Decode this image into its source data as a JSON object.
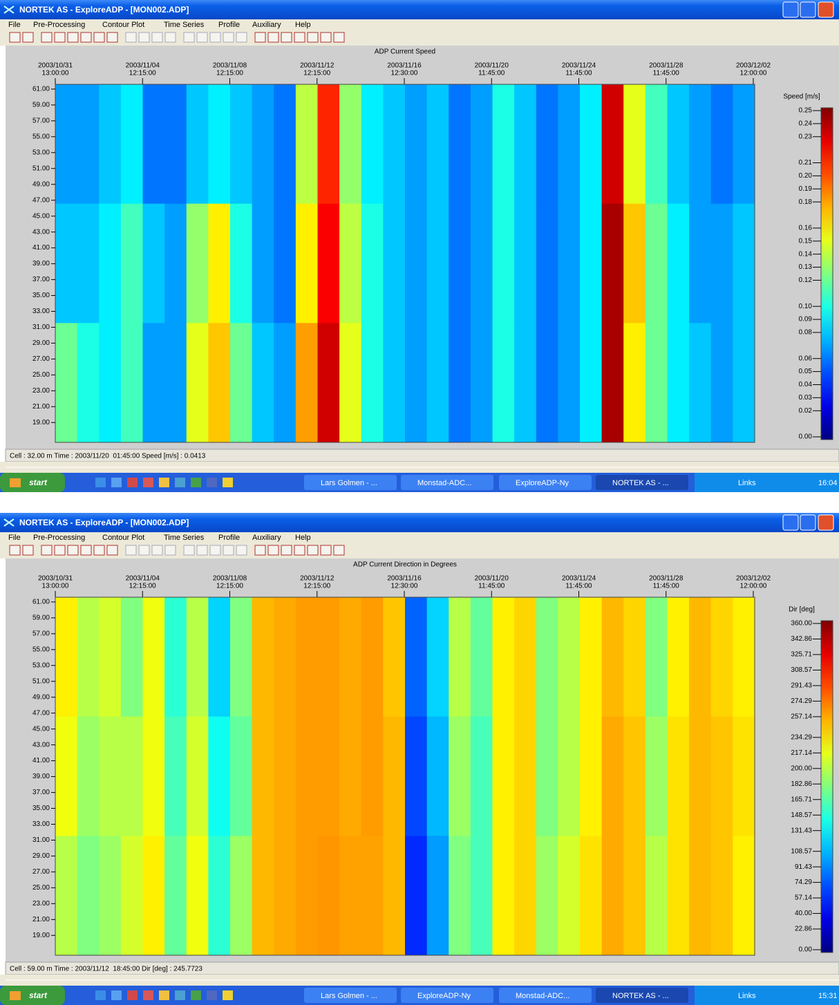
{
  "windows": [
    {
      "title": "NORTEK AS - ExploreADP - [MON002.ADP]",
      "menu": [
        "File",
        "Pre-Processing",
        "Contour Plot",
        "Time Series",
        "Profile",
        "Auxiliary",
        "Help"
      ],
      "status": "Cell : 32.00 m Time : 2003/11/20  01:45:00 Speed [m/s] : 0.0413",
      "taskbar": {
        "start": "start",
        "items": [
          "Lars Golmen - ...",
          "Monstad-ADC...",
          "ExploreADP-Ny",
          "NORTEK AS - ..."
        ],
        "links": "Links",
        "clock": "16:04"
      },
      "chart": {
        "type": "heatmap",
        "title": "ADP Current Speed",
        "colorbar_label": "Speed [m/s]",
        "xtick_labels": [
          [
            "2003/10/31",
            "13:00:00"
          ],
          [
            "2003/11/04",
            "12:15:00"
          ],
          [
            "2003/11/08",
            "12:15:00"
          ],
          [
            "2003/11/12",
            "12:15:00"
          ],
          [
            "2003/11/16",
            "12:30:00"
          ],
          [
            "2003/11/20",
            "11:45:00"
          ],
          [
            "2003/11/24",
            "11:45:00"
          ],
          [
            "2003/11/28",
            "11:45:00"
          ],
          [
            "2003/12/02",
            "12:00:00"
          ]
        ],
        "ylim": [
          16.5,
          61.6
        ],
        "yticks": [
          {
            "value": 61,
            "label": "61.00"
          },
          {
            "value": 59,
            "label": "59.00"
          },
          {
            "value": 57,
            "label": "57.00"
          },
          {
            "value": 55,
            "label": "55.00"
          },
          {
            "value": 53,
            "label": "53.00"
          },
          {
            "value": 51,
            "label": "51.00"
          },
          {
            "value": 49,
            "label": "49.00"
          },
          {
            "value": 47,
            "label": "47.00"
          },
          {
            "value": 45,
            "label": "45.00"
          },
          {
            "value": 43,
            "label": "43.00"
          },
          {
            "value": 41,
            "label": "41.00"
          },
          {
            "value": 39,
            "label": "39.00"
          },
          {
            "value": 37,
            "label": "37.00"
          },
          {
            "value": 35,
            "label": "35.00"
          },
          {
            "value": 33,
            "label": "33.00"
          },
          {
            "value": 31,
            "label": "31.00"
          },
          {
            "value": 29,
            "label": "29.00"
          },
          {
            "value": 27,
            "label": "27.00"
          },
          {
            "value": 25,
            "label": "25.00"
          },
          {
            "value": 23,
            "label": "23.00"
          },
          {
            "value": 21,
            "label": "21.00"
          },
          {
            "value": 19,
            "label": "19.00"
          }
        ],
        "zlim": [
          0,
          0.25
        ],
        "zticks": [
          {
            "value": 0.25,
            "label": "0.25"
          },
          {
            "value": 0.24,
            "label": "0.24"
          },
          {
            "value": 0.23,
            "label": "0.23"
          },
          {
            "value": 0.21,
            "label": "0.21"
          },
          {
            "value": 0.2,
            "label": "0.20"
          },
          {
            "value": 0.19,
            "label": "0.19"
          },
          {
            "value": 0.18,
            "label": "0.18"
          },
          {
            "value": 0.16,
            "label": "0.16"
          },
          {
            "value": 0.15,
            "label": "0.15"
          },
          {
            "value": 0.14,
            "label": "0.14"
          },
          {
            "value": 0.13,
            "label": "0.13"
          },
          {
            "value": 0.12,
            "label": "0.12"
          },
          {
            "value": 0.1,
            "label": "0.10"
          },
          {
            "value": 0.09,
            "label": "0.09"
          },
          {
            "value": 0.08,
            "label": "0.08"
          },
          {
            "value": 0.06,
            "label": "0.06"
          },
          {
            "value": 0.05,
            "label": "0.05"
          },
          {
            "value": 0.04,
            "label": "0.04"
          },
          {
            "value": 0.03,
            "label": "0.03"
          },
          {
            "value": 0.02,
            "label": "0.02"
          },
          {
            "value": 0,
            "label": "0.00"
          }
        ],
        "z": [
          [
            0.07,
            0.07,
            0.08,
            0.09,
            0.06,
            0.06,
            0.08,
            0.09,
            0.08,
            0.07,
            0.06,
            0.14,
            0.21,
            0.13,
            0.09,
            0.08,
            0.07,
            0.08,
            0.06,
            0.07,
            0.1,
            0.08,
            0.06,
            0.07,
            0.09,
            0.23,
            0.15,
            0.11,
            0.08,
            0.07,
            0.06,
            0.07
          ],
          [
            0.08,
            0.08,
            0.09,
            0.11,
            0.08,
            0.07,
            0.13,
            0.16,
            0.1,
            0.07,
            0.06,
            0.16,
            0.22,
            0.14,
            0.1,
            0.08,
            0.07,
            0.08,
            0.06,
            0.07,
            0.1,
            0.08,
            0.06,
            0.07,
            0.09,
            0.24,
            0.17,
            0.12,
            0.09,
            0.07,
            0.07,
            0.08
          ],
          [
            0.12,
            0.1,
            0.09,
            0.11,
            0.07,
            0.07,
            0.15,
            0.17,
            0.12,
            0.08,
            0.07,
            0.18,
            0.23,
            0.15,
            0.1,
            0.08,
            0.07,
            0.08,
            0.06,
            0.07,
            0.1,
            0.08,
            0.06,
            0.07,
            0.09,
            0.24,
            0.16,
            0.12,
            0.09,
            0.08,
            0.07,
            0.08
          ]
        ]
      }
    },
    {
      "title": "NORTEK AS - ExploreADP - [MON002.ADP]",
      "menu": [
        "File",
        "Pre-Processing",
        "Contour Plot",
        "Time Series",
        "Profile",
        "Auxiliary",
        "Help"
      ],
      "status": "Cell : 59.00 m Time : 2003/11/12  18:45:00 Dir [deg] : 245.7723",
      "taskbar": {
        "start": "start",
        "items": [
          "Lars Golmen - ...",
          "ExploreADP-Ny",
          "Monstad-ADC...",
          "NORTEK AS - ..."
        ],
        "links": "Links",
        "clock": "15:31"
      },
      "chart": {
        "type": "heatmap",
        "title": "ADP Current Direction in Degrees",
        "colorbar_label": "Dir [deg]",
        "xtick_labels": [
          [
            "2003/10/31",
            "13:00:00"
          ],
          [
            "2003/11/04",
            "12:15:00"
          ],
          [
            "2003/11/08",
            "12:15:00"
          ],
          [
            "2003/11/12",
            "12:15:00"
          ],
          [
            "2003/11/16",
            "12:30:00"
          ],
          [
            "2003/11/20",
            "11:45:00"
          ],
          [
            "2003/11/24",
            "11:45:00"
          ],
          [
            "2003/11/28",
            "11:45:00"
          ],
          [
            "2003/12/02",
            "12:00:00"
          ]
        ],
        "ylim": [
          16.5,
          61.6
        ],
        "yticks": [
          {
            "value": 61,
            "label": "61.00"
          },
          {
            "value": 59,
            "label": "59.00"
          },
          {
            "value": 57,
            "label": "57.00"
          },
          {
            "value": 55,
            "label": "55.00"
          },
          {
            "value": 53,
            "label": "53.00"
          },
          {
            "value": 51,
            "label": "51.00"
          },
          {
            "value": 49,
            "label": "49.00"
          },
          {
            "value": 47,
            "label": "47.00"
          },
          {
            "value": 45,
            "label": "45.00"
          },
          {
            "value": 43,
            "label": "43.00"
          },
          {
            "value": 41,
            "label": "41.00"
          },
          {
            "value": 39,
            "label": "39.00"
          },
          {
            "value": 37,
            "label": "37.00"
          },
          {
            "value": 35,
            "label": "35.00"
          },
          {
            "value": 33,
            "label": "33.00"
          },
          {
            "value": 31,
            "label": "31.00"
          },
          {
            "value": 29,
            "label": "29.00"
          },
          {
            "value": 27,
            "label": "27.00"
          },
          {
            "value": 25,
            "label": "25.00"
          },
          {
            "value": 23,
            "label": "23.00"
          },
          {
            "value": 21,
            "label": "21.00"
          },
          {
            "value": 19,
            "label": "19.00"
          }
        ],
        "zlim": [
          0,
          360
        ],
        "zticks": [
          {
            "value": 360,
            "label": "360.00"
          },
          {
            "value": 342.86,
            "label": "342.86"
          },
          {
            "value": 325.71,
            "label": "325.71"
          },
          {
            "value": 308.57,
            "label": "308.57"
          },
          {
            "value": 291.43,
            "label": "291.43"
          },
          {
            "value": 274.29,
            "label": "274.29"
          },
          {
            "value": 257.14,
            "label": "257.14"
          },
          {
            "value": 234.29,
            "label": "234.29"
          },
          {
            "value": 217.14,
            "label": "217.14"
          },
          {
            "value": 200,
            "label": "200.00"
          },
          {
            "value": 182.86,
            "label": "182.86"
          },
          {
            "value": 165.71,
            "label": "165.71"
          },
          {
            "value": 148.57,
            "label": "148.57"
          },
          {
            "value": 131.43,
            "label": "131.43"
          },
          {
            "value": 108.57,
            "label": "108.57"
          },
          {
            "value": 91.43,
            "label": "91.43"
          },
          {
            "value": 74.29,
            "label": "74.29"
          },
          {
            "value": 57.14,
            "label": "57.14"
          },
          {
            "value": 40,
            "label": "40.00"
          },
          {
            "value": 22.86,
            "label": "22.86"
          },
          {
            "value": 0,
            "label": "0.00"
          }
        ],
        "z": [
          [
            230,
            200,
            210,
            180,
            220,
            150,
            200,
            120,
            180,
            250,
            255,
            260,
            260,
            255,
            260,
            245,
            80,
            120,
            200,
            170,
            230,
            240,
            180,
            200,
            230,
            250,
            240,
            180,
            230,
            250,
            240,
            230
          ],
          [
            220,
            190,
            200,
            200,
            220,
            160,
            210,
            140,
            170,
            250,
            255,
            260,
            260,
            255,
            260,
            250,
            70,
            110,
            190,
            160,
            230,
            240,
            180,
            200,
            230,
            255,
            245,
            190,
            235,
            250,
            245,
            235
          ],
          [
            200,
            180,
            190,
            210,
            230,
            170,
            220,
            150,
            190,
            250,
            255,
            260,
            262,
            258,
            258,
            250,
            60,
            100,
            180,
            160,
            230,
            240,
            190,
            210,
            235,
            255,
            245,
            200,
            235,
            250,
            245,
            230
          ]
        ]
      }
    }
  ]
}
